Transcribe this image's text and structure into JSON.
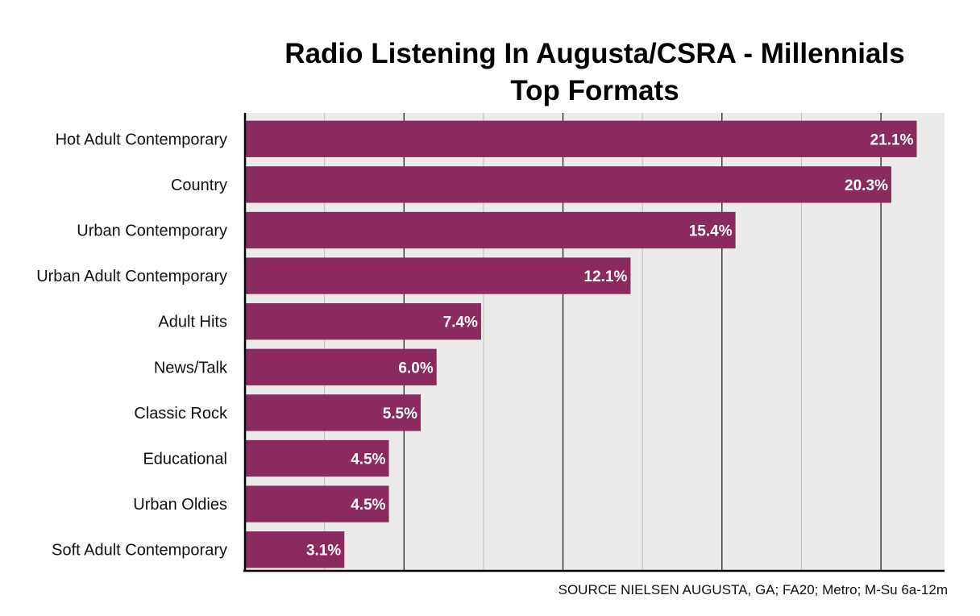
{
  "title_line1": "Radio Listening In Augusta/CSRA - Millennials",
  "title_line2": "Top Formats",
  "source": "SOURCE NIELSEN AUGUSTA, GA; FA20; Metro; M-Su 6a-12m",
  "colors": {
    "bar": "#8b2a5e",
    "plot_bg": "#ebebeb",
    "grid_major": "#111111",
    "grid_minor": "#bdbdbd"
  },
  "chart_data": {
    "type": "bar",
    "orientation": "horizontal",
    "title": "Radio Listening In Augusta/CSRA - Millennials Top Formats",
    "categories": [
      "Hot Adult Contemporary",
      "Country",
      "Urban Contemporary",
      "Urban Adult Contemporary",
      "Adult Hits",
      "News/Talk",
      "Classic Rock",
      "Educational",
      "Urban Oldies",
      "Soft Adult Contemporary"
    ],
    "values": [
      21.1,
      20.3,
      15.4,
      12.1,
      7.4,
      6.0,
      5.5,
      4.5,
      4.5,
      3.1
    ],
    "data_labels": [
      "21.1%",
      "20.3%",
      "15.4%",
      "12.1%",
      "7.4%",
      "6.0%",
      "5.5%",
      "4.5%",
      "4.5%",
      "3.1%"
    ],
    "xlim": [
      0,
      22
    ],
    "grid": true,
    "x_tick_labels_shown": false
  }
}
